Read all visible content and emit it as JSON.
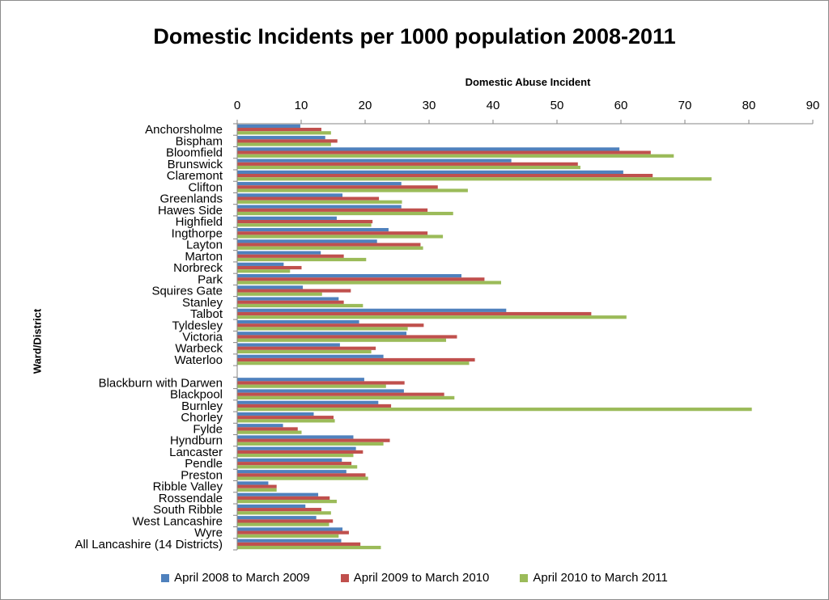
{
  "chart_data": {
    "type": "bar",
    "orientation": "horizontal",
    "title": "Domestic Incidents per 1000 population 2008-2011",
    "xlabel": "Domestic Abuse Incident",
    "ylabel": "Ward/District",
    "xlim": [
      0,
      90
    ],
    "x_ticks": [
      "0",
      "10",
      "20",
      "30",
      "40",
      "50",
      "60",
      "70",
      "80",
      "90"
    ],
    "grid": false,
    "legend_position": "bottom",
    "categories": [
      "Anchorsholme",
      "Bispham",
      "Bloomfield",
      "Brunswick",
      "Claremont",
      "Clifton",
      "Greenlands",
      "Hawes Side",
      "Highfield",
      "Ingthorpe",
      "Layton",
      "Marton",
      "Norbreck",
      "Park",
      "Squires Gate",
      "Stanley",
      "Talbot",
      "Tyldesley",
      "Victoria",
      "Warbeck",
      "Waterloo",
      "",
      "Blackburn with Darwen",
      "Blackpool",
      "Burnley",
      "Chorley",
      "Fylde",
      "Hyndburn",
      "Lancaster",
      "Pendle",
      "Preston",
      "Ribble Valley",
      "Rossendale",
      "South Ribble",
      "West Lancashire",
      "Wyre",
      "All Lancashire (14 Districts)"
    ],
    "series": [
      {
        "name": "April 2008 to March 2009",
        "color": "#4f81bd",
        "values": [
          9.8,
          13.7,
          59.7,
          42.8,
          60.3,
          25.6,
          16.4,
          25.6,
          15.5,
          23.6,
          21.8,
          13,
          7.2,
          35,
          10.2,
          15.8,
          42,
          19,
          26.4,
          16,
          22.8,
          null,
          19.8,
          26,
          22,
          11.9,
          7.1,
          18.1,
          18.5,
          16.3,
          17,
          4.8,
          12.6,
          10.6,
          12.3,
          16.4,
          16.2
        ]
      },
      {
        "name": "April 2009 to March 2010",
        "color": "#c0504d",
        "values": [
          13.1,
          15.6,
          64.6,
          53.2,
          64.9,
          31.3,
          22.1,
          29.7,
          21.1,
          29.7,
          28.6,
          16.6,
          10,
          38.6,
          17.7,
          16.6,
          55.3,
          29.1,
          34.3,
          21.6,
          37.1,
          null,
          26.1,
          32.3,
          24,
          15,
          9.4,
          23.8,
          19.6,
          17.8,
          20,
          6.1,
          14.4,
          13.1,
          14.9,
          17.4,
          19.2
        ]
      },
      {
        "name": "April 2010 to March 2011",
        "color": "#9bbb59",
        "values": [
          14.6,
          14.6,
          68.2,
          53.6,
          74.1,
          36,
          25.7,
          33.7,
          20.9,
          32.1,
          29,
          20.1,
          8.2,
          41.2,
          13.2,
          19.6,
          60.8,
          26.6,
          32.6,
          20.9,
          36.2,
          null,
          23.2,
          33.9,
          80.4,
          15.2,
          10,
          22.8,
          18.1,
          18.7,
          20.4,
          6.1,
          15.5,
          14.6,
          14.3,
          15.8,
          22.4
        ]
      }
    ]
  }
}
